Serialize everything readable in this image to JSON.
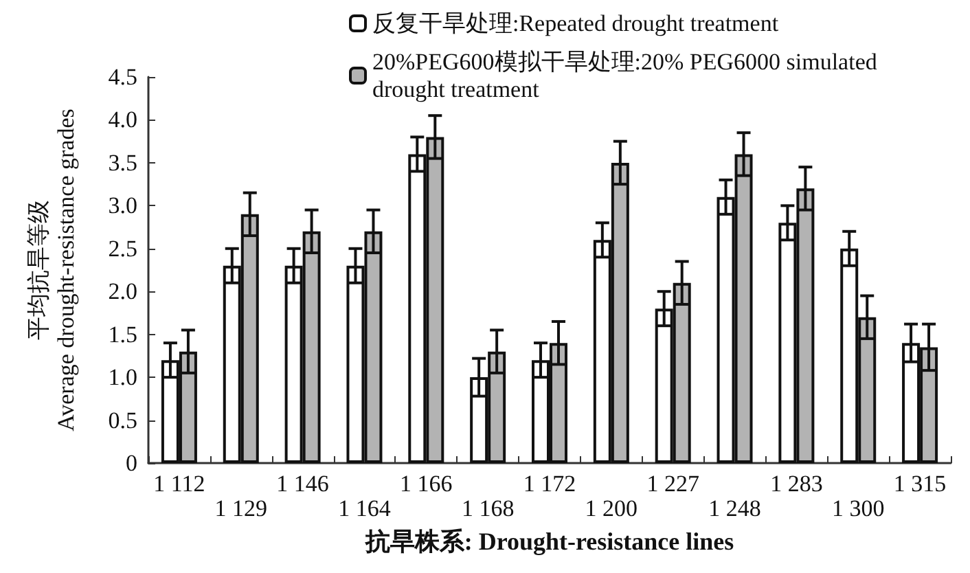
{
  "chart_data": {
    "type": "bar",
    "xlabel": "抗旱株系: Drought-resistance lines",
    "ylabel": "平均抗旱等级 Average drought-resistance grades",
    "categories": [
      "1 112",
      "1 129",
      "1 146",
      "1 164",
      "1 166",
      "1 168",
      "1 172",
      "1 200",
      "1 227",
      "1 248",
      "1 283",
      "1 300",
      "1 315"
    ],
    "series": [
      {
        "name": "反复干旱处理:Repeated drought treatment",
        "color": "#ffffff",
        "values": [
          1.2,
          2.3,
          2.3,
          2.3,
          3.6,
          1.0,
          1.2,
          2.6,
          1.8,
          3.1,
          2.8,
          2.5,
          1.4
        ],
        "errors": [
          0.2,
          0.2,
          0.2,
          0.2,
          0.2,
          0.22,
          0.2,
          0.2,
          0.2,
          0.2,
          0.2,
          0.2,
          0.22
        ]
      },
      {
        "name": "20%PEG600模拟干旱处理:20% PEG6000 simulated drought treatment",
        "color": "#b3b3b3",
        "values": [
          1.3,
          2.9,
          2.7,
          2.7,
          3.8,
          1.3,
          1.4,
          3.5,
          2.1,
          3.6,
          3.2,
          1.7,
          1.35
        ],
        "errors": [
          0.25,
          0.25,
          0.25,
          0.25,
          0.25,
          0.25,
          0.25,
          0.25,
          0.25,
          0.25,
          0.25,
          0.25,
          0.27
        ]
      }
    ],
    "ylim": [
      0,
      4.5
    ],
    "yticks": [
      0,
      0.5,
      {
        "value": 1,
        "label": "1.0"
      },
      1.5,
      {
        "value": 2,
        "label": "2.0"
      },
      2.5,
      {
        "value": 3,
        "label": "3.0"
      },
      3.5,
      {
        "value": 4,
        "label": "4.0"
      },
      4.5
    ],
    "grid": false,
    "legend": "top right"
  }
}
